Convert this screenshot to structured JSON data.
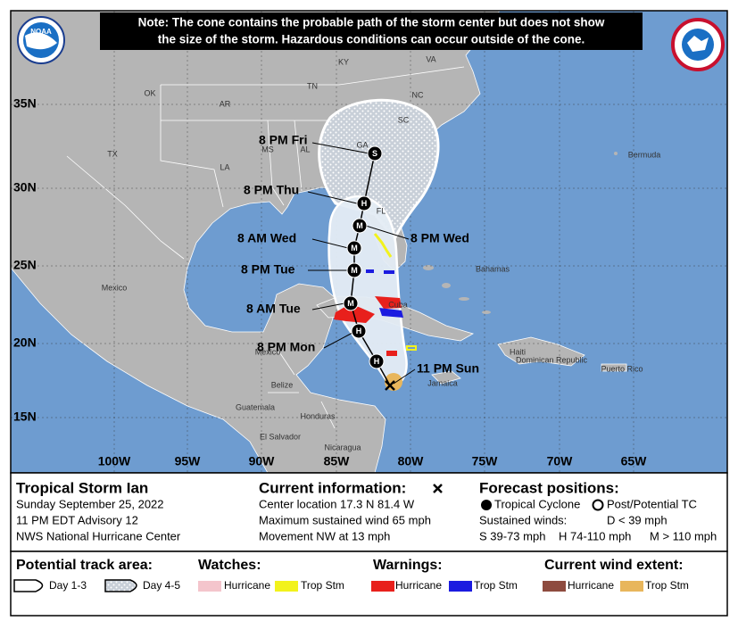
{
  "note": [
    "Note: The cone contains the probable path of the storm center but does not show",
    "the size of the storm. Hazardous conditions can occur outside of the cone."
  ],
  "logo": "NOAA",
  "latitudes": [
    "35N",
    "30N",
    "25N",
    "20N",
    "15N"
  ],
  "longitudes": [
    "100W",
    "95W",
    "90W",
    "85W",
    "80W",
    "75W",
    "70W",
    "65W"
  ],
  "places": [
    "KY",
    "VA",
    "OK",
    "AR",
    "TN",
    "NC",
    "SC",
    "GA",
    "AL",
    "MS",
    "LA",
    "TX",
    "FL",
    "Bermuda",
    "Mexico",
    "Bahamas",
    "Cuba",
    "Haiti",
    "Dominican Republic",
    "Puerto Rico",
    "Jamaica",
    "Mexico",
    "Belize",
    "Guatemala",
    "Honduras",
    "El Salvador",
    "Nicaragua"
  ],
  "markers": [
    "S",
    "H",
    "M",
    "M",
    "M",
    "M",
    "H",
    "H"
  ],
  "time_labels": [
    "8 PM Fri",
    "8 PM Thu",
    "8 AM Wed",
    "8 PM Wed",
    "8 PM Tue",
    "8 AM Tue",
    "8 PM Mon",
    "11 PM Sun"
  ],
  "storm": {
    "title": "Tropical Storm Ian",
    "date": "Sunday September 25, 2022",
    "advisory": "11 PM EDT Advisory 12",
    "office": "NWS National Hurricane Center"
  },
  "current": {
    "heading": "Current information:",
    "lines": [
      "Center location 17.3 N 81.4 W",
      "Maximum sustained wind 65 mph",
      "Movement NW at 13 mph"
    ]
  },
  "forecast": {
    "heading": "Forecast positions:",
    "tropical": "Tropical Cyclone",
    "post": "Post/Potential TC",
    "winds": "Sustained winds:",
    "d": "D < 39 mph",
    "s": "S 39-73 mph",
    "h": "H 74-110 mph",
    "m": "M > 110 mph"
  },
  "legend": {
    "track": {
      "heading": "Potential track area:",
      "day13": "Day 1-3",
      "day45": "Day 4-5"
    },
    "watches": {
      "heading": "Watches:",
      "hurricane": "Hurricane",
      "tropical_storm": "Trop Stm"
    },
    "warnings": {
      "heading": "Warnings:",
      "hurricane": "Hurricane",
      "tropical_storm": "Trop Stm"
    },
    "wind": {
      "heading": "Current wind extent:",
      "hurricane": "Hurricane",
      "tropical_storm": "Trop Stm"
    }
  }
}
